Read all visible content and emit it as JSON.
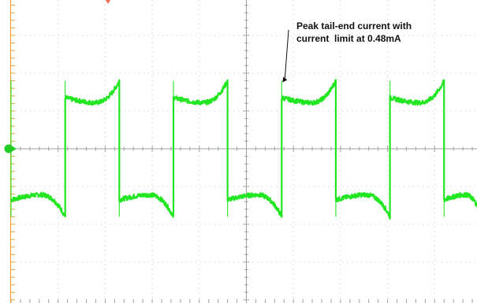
{
  "chart_data": {
    "type": "line",
    "title": "",
    "xlabel": "",
    "ylabel": "",
    "x_divisions": 10,
    "y_divisions": 8,
    "xlim": [
      0,
      10
    ],
    "ylim": [
      -4,
      4
    ],
    "grid": true,
    "colors": {
      "trace": "#22e622",
      "grid": "#c8c8c8",
      "axis": "#a0a0a0",
      "frame": "#e8a23a",
      "trigger_marker": "#f26b50",
      "ground_marker": "#22cc22"
    },
    "series": [
      {
        "waveform": "square-with-curved-tails",
        "period_div": 2.5,
        "first_rise_div": 1.0,
        "first_fall_div": 1.05,
        "first_falling_edge_div": 1.15,
        "high_level_div": 1.3,
        "high_peak_div": 1.8,
        "low_level_div": -1.3,
        "low_peak_div": -1.8,
        "edges_div": [
          0.0,
          1.15,
          2.3,
          3.45,
          4.6,
          5.75,
          6.9,
          8.05,
          9.2
        ]
      }
    ],
    "annotation": {
      "lines": [
        "Peak tail-end current with",
        "current  limit at 0.48mA"
      ],
      "arrow_target_div": [
        5.8,
        1.8
      ]
    }
  }
}
